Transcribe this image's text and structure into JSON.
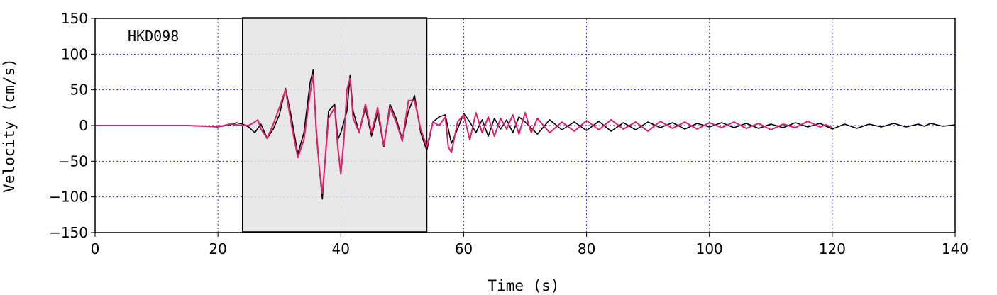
{
  "chart_data": {
    "type": "line",
    "station_label": "HKD098",
    "xlabel": "Time (s)",
    "ylabel": "Velocity (cm/s)",
    "xlim": [
      0,
      140
    ],
    "ylim": [
      -150,
      150
    ],
    "x_ticks": [
      0,
      20,
      40,
      60,
      80,
      100,
      120,
      140
    ],
    "y_ticks": [
      150,
      100,
      50,
      0,
      -50,
      -100,
      -150
    ],
    "grid": true,
    "highlight_window": {
      "x_start": 24,
      "x_end": 54
    },
    "colors": {
      "observed": "#000000",
      "synthetic": "#e0206a",
      "grid": "#3333cc",
      "window_fill": "#e4e4e4"
    },
    "series": [
      {
        "x": [
          0,
          5,
          10,
          15,
          18,
          20,
          22,
          23,
          24,
          25,
          26,
          27,
          28,
          29,
          30,
          31,
          32,
          33,
          34,
          35,
          35.5,
          36,
          36.5,
          37,
          38,
          39,
          39.5,
          40,
          41,
          41.5,
          42,
          43,
          44,
          45,
          46,
          47,
          48,
          49,
          50,
          51,
          52,
          53,
          54,
          55,
          56,
          57,
          58,
          59,
          60,
          61,
          62,
          63,
          64,
          65,
          66,
          67,
          68,
          69,
          70,
          72,
          74,
          76,
          78,
          80,
          82,
          84,
          86,
          88,
          90,
          92,
          94,
          96,
          98,
          100,
          102,
          104,
          106,
          108,
          110,
          112,
          114,
          116,
          118,
          120,
          122,
          124,
          126,
          128,
          130,
          132,
          134,
          135,
          136,
          138,
          140
        ],
        "y": [
          0,
          0,
          0,
          0,
          -1,
          -2,
          1,
          4,
          2,
          -2,
          -10,
          2,
          -18,
          -5,
          15,
          52,
          10,
          -40,
          -10,
          60,
          78,
          -10,
          -60,
          -103,
          20,
          30,
          -20,
          -10,
          20,
          70,
          20,
          -10,
          25,
          -15,
          18,
          -30,
          30,
          10,
          -20,
          20,
          42,
          -10,
          -35,
          5,
          12,
          15,
          -25,
          -5,
          17,
          5,
          -10,
          8,
          -15,
          10,
          -5,
          8,
          -10,
          12,
          5,
          -12,
          8,
          -6,
          5,
          -7,
          6,
          -8,
          4,
          -6,
          5,
          -3,
          4,
          -5,
          3,
          -2,
          4,
          -3,
          3,
          -4,
          2,
          -3,
          4,
          -2,
          3,
          -5,
          2,
          -4,
          2,
          -2,
          3,
          -2,
          2,
          -1,
          3,
          -1,
          1
        ]
      },
      {
        "x": [
          0,
          5,
          10,
          15,
          18,
          20,
          22,
          24,
          25,
          26,
          26.5,
          27,
          28,
          29,
          30,
          31,
          32,
          33,
          34,
          35,
          35.5,
          36,
          36.5,
          37,
          38,
          39,
          39.5,
          40,
          40.5,
          41,
          41.5,
          42,
          43,
          44,
          45,
          46,
          47,
          48,
          49,
          50,
          51,
          52,
          53,
          54,
          55,
          56,
          57,
          57.5,
          58,
          59,
          60,
          61,
          62,
          63,
          64,
          65,
          66,
          67,
          68,
          69,
          70,
          71,
          72,
          74,
          76,
          78,
          80,
          82,
          84,
          86,
          88,
          90,
          92,
          94,
          96,
          98,
          100,
          102,
          104,
          106,
          108,
          110,
          112,
          114,
          116,
          118,
          119,
          120
        ],
        "y": [
          0,
          0,
          0,
          0,
          -1,
          -2,
          2,
          0,
          0,
          5,
          8,
          -5,
          -18,
          2,
          25,
          50,
          0,
          -45,
          -20,
          45,
          70,
          -5,
          -60,
          -95,
          10,
          25,
          -30,
          -68,
          -20,
          50,
          66,
          10,
          -10,
          30,
          -10,
          25,
          -28,
          25,
          5,
          -22,
          35,
          35,
          -5,
          -30,
          5,
          0,
          12,
          -30,
          -38,
          5,
          15,
          -20,
          18,
          -10,
          12,
          -15,
          10,
          -5,
          15,
          -12,
          18,
          -10,
          10,
          -10,
          5,
          -8,
          7,
          -6,
          8,
          -5,
          5,
          -8,
          6,
          -4,
          5,
          -5,
          4,
          -3,
          5,
          -4,
          3,
          -6,
          2,
          -3,
          6,
          -2,
          1,
          -3
        ]
      }
    ]
  }
}
